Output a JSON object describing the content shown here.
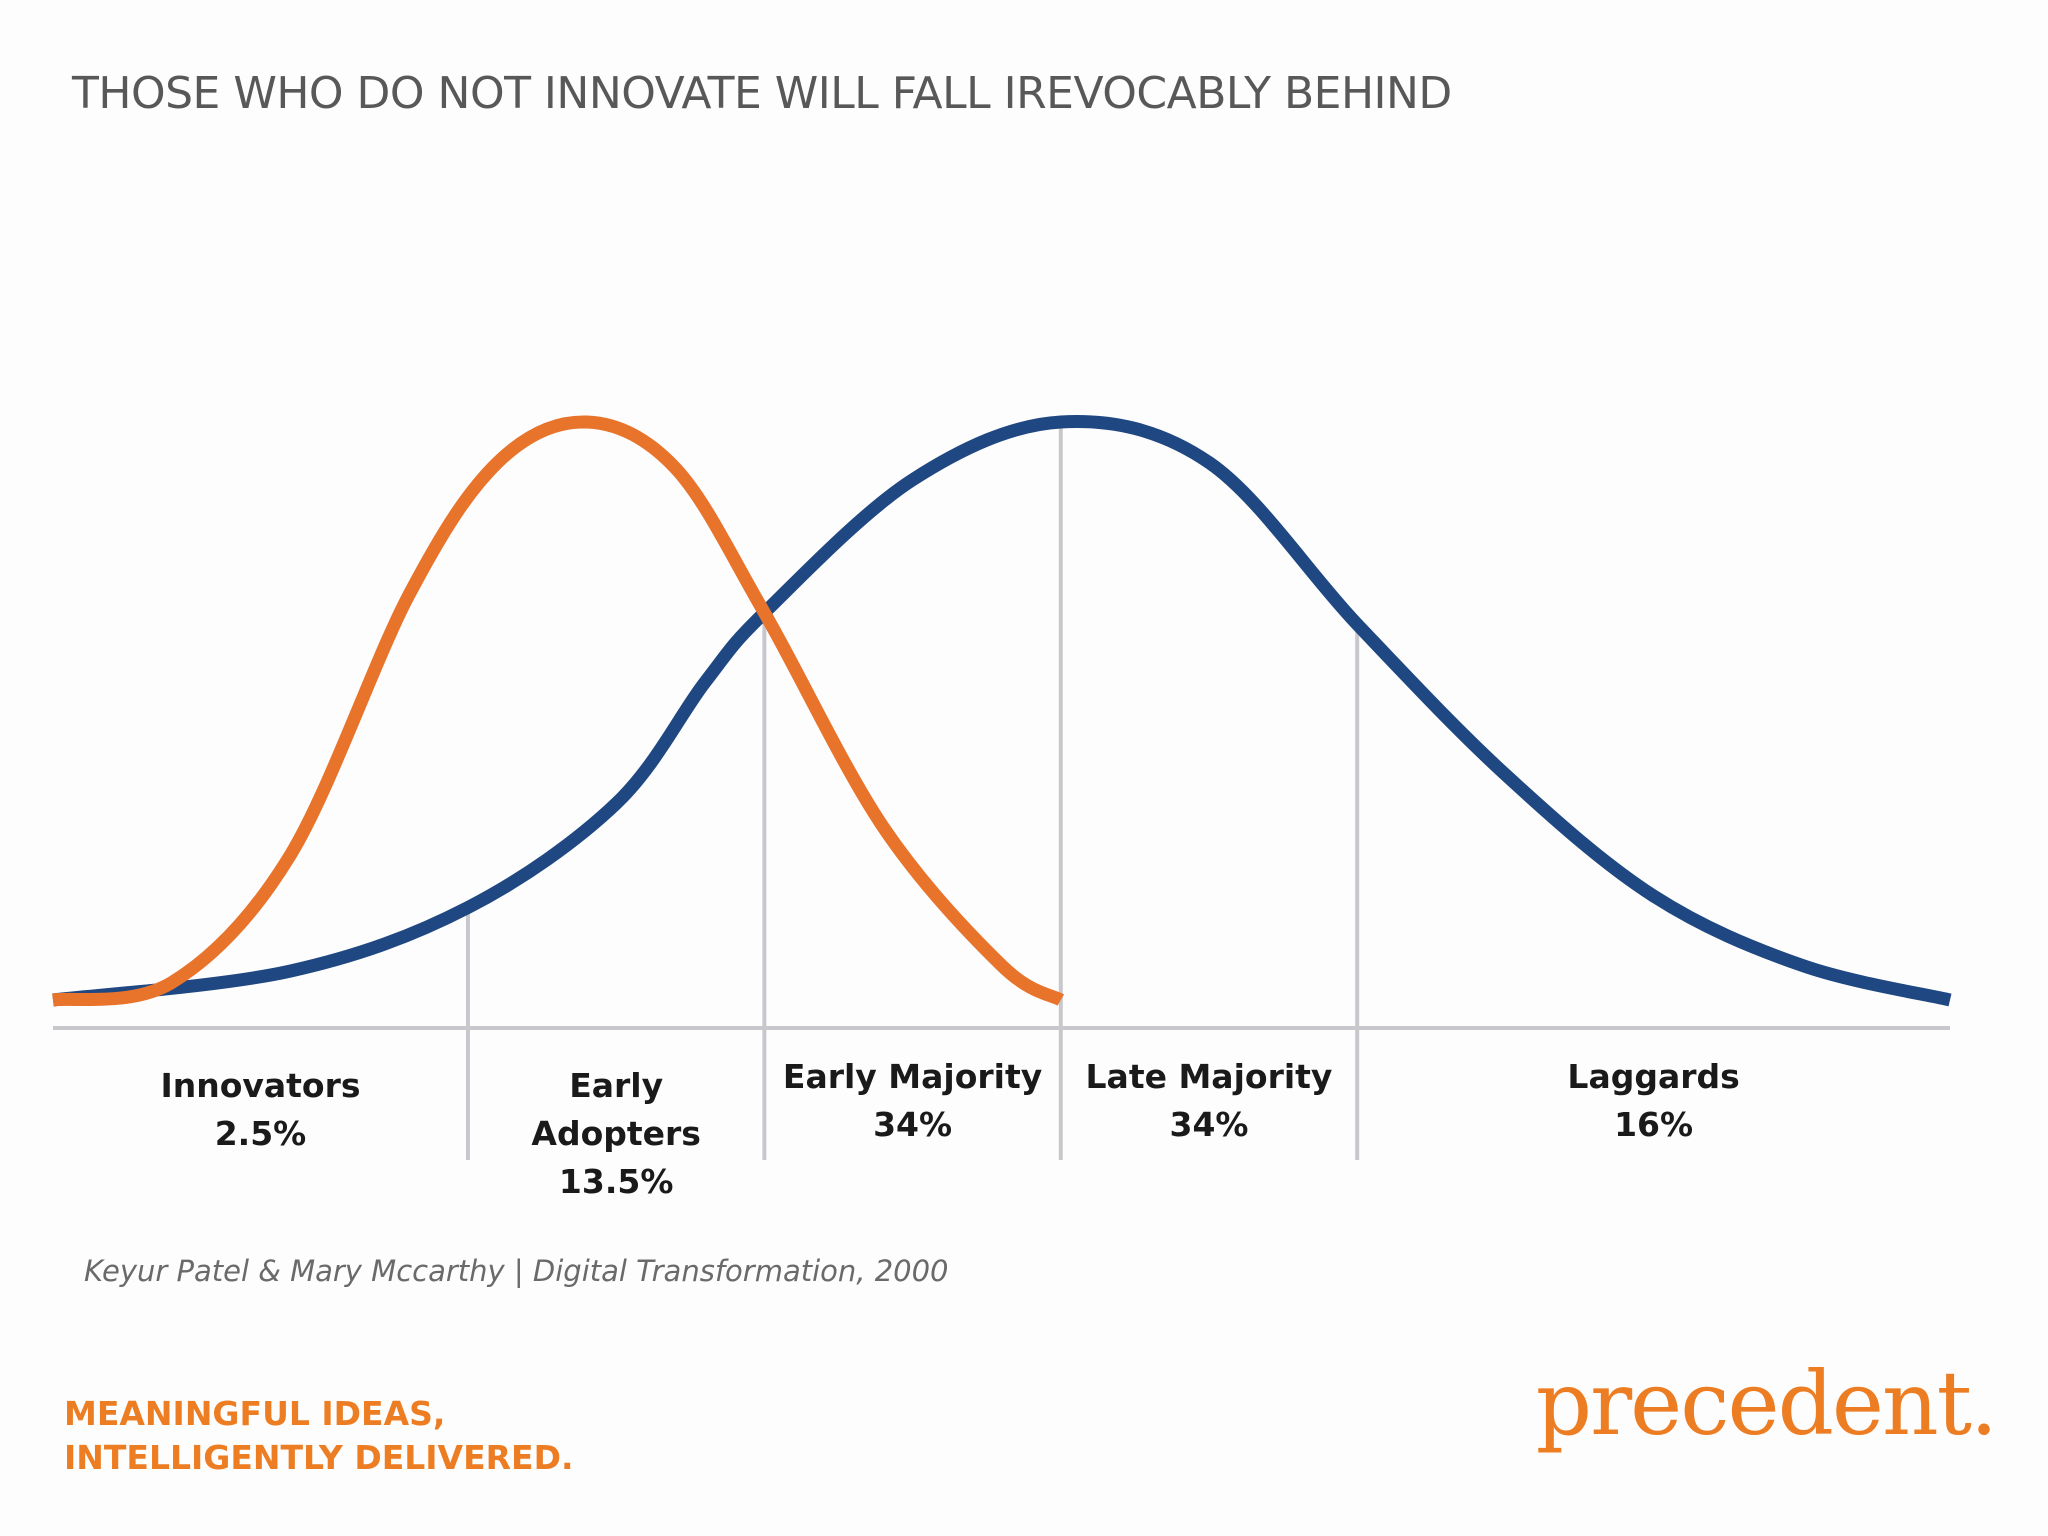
{
  "title": "THOSE WHO DO NOT INNOVATE WILL FALL IREVOCABLY BEHIND",
  "chart_data": {
    "type": "line",
    "title": "THOSE WHO DO NOT INNOVATE WILL FALL IREVOCABLY BEHIND",
    "xlabel": "",
    "ylabel": "",
    "grid": false,
    "categories": [
      {
        "name": "Innovators",
        "share": "2.5%",
        "lines": [
          "Innovators",
          "2.5%"
        ]
      },
      {
        "name": "Early Adopters",
        "share": "13.5%",
        "lines": [
          "Early",
          "Adopters",
          "13.5%"
        ]
      },
      {
        "name": "Early Majority",
        "share": "34%",
        "lines": [
          "Early Majority",
          "34%"
        ]
      },
      {
        "name": "Late Majority",
        "share": "34%",
        "lines": [
          "Late Majority",
          "34%"
        ]
      },
      {
        "name": "Laggards",
        "share": "16%",
        "lines": [
          "Laggards",
          "16%"
        ]
      }
    ],
    "boundaries_sd": [
      -2,
      -1,
      0,
      1
    ],
    "xlim": [
      -3.4,
      3.0
    ],
    "series": [
      {
        "color": "#1f4781",
        "description_points": [
          [
            -3.4,
            0.0
          ],
          [
            -2.6,
            0.05
          ],
          [
            -2.0,
            0.16
          ],
          [
            -1.5,
            0.34
          ],
          [
            -1.2,
            0.55
          ],
          [
            -1.0,
            0.67
          ],
          [
            -0.5,
            0.9
          ],
          [
            0.0,
            1.0
          ],
          [
            0.5,
            0.93
          ],
          [
            1.0,
            0.65
          ],
          [
            1.5,
            0.39
          ],
          [
            2.0,
            0.18
          ],
          [
            2.5,
            0.06
          ],
          [
            3.0,
            0.0
          ]
        ]
      },
      {
        "color": "#e8732a",
        "description_points": [
          [
            -3.4,
            0.0
          ],
          [
            -3.0,
            0.03
          ],
          [
            -2.6,
            0.25
          ],
          [
            -2.2,
            0.7
          ],
          [
            -1.9,
            0.93
          ],
          [
            -1.6,
            1.0
          ],
          [
            -1.3,
            0.92
          ],
          [
            -1.0,
            0.67
          ],
          [
            -0.6,
            0.3
          ],
          [
            -0.2,
            0.06
          ],
          [
            0.0,
            0.0
          ]
        ]
      }
    ]
  },
  "citation": "Keyur Patel & Mary Mccarthy | Digital Transformation, 2000",
  "tagline": [
    "MEANINGFUL IDEAS,",
    "INTELLIGENTLY DELIVERED."
  ],
  "brand": "precedent.",
  "colors": {
    "blue_curve": "#1f4781",
    "orange_curve": "#e8732a",
    "axis": "#c8c8cc",
    "accent": "#ed7d22"
  }
}
